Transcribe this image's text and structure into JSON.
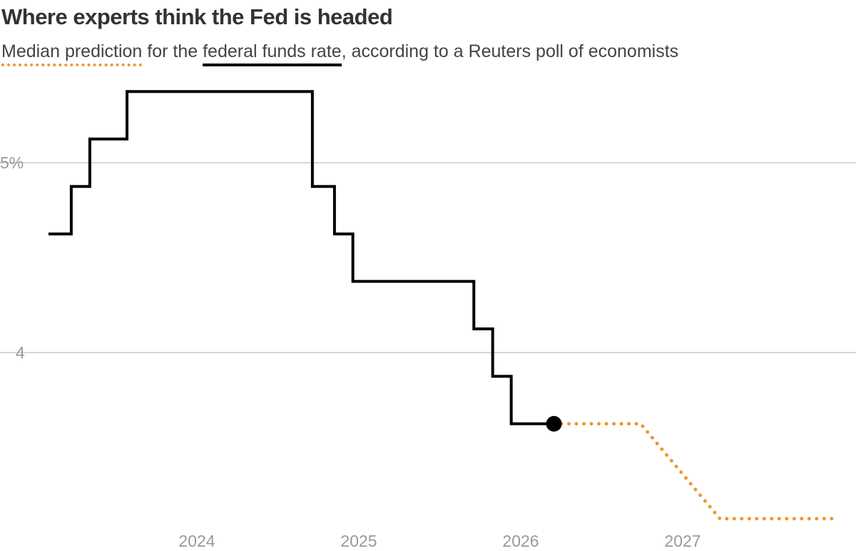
{
  "chart_data": {
    "type": "line",
    "title": "Where experts think the Fed is headed",
    "subtitle": {
      "prefix": "",
      "forecast_label": "Median prediction",
      "middle": " for the ",
      "actual_label": "federal funds rate",
      "suffix": ", according to a Reuters poll of economists"
    },
    "x_ticks": [
      "2024",
      "2025",
      "2026",
      "2027"
    ],
    "y_ticks": [
      {
        "value": 5,
        "label": "5%"
      },
      {
        "value": 4,
        "label": "4"
      }
    ],
    "ylim": [
      3,
      5.5
    ],
    "xlim": [
      "2023-01-01",
      "2028-01-01"
    ],
    "grid": "horizontal",
    "colors": {
      "actual": "#000000",
      "forecast": "#f0952f",
      "grid": "#c8c8c8"
    },
    "series": [
      {
        "name": "federal funds rate",
        "style": "step",
        "points": [
          [
            "2023-02-01",
            4.625
          ],
          [
            "2023-03-22",
            4.875
          ],
          [
            "2023-05-03",
            5.125
          ],
          [
            "2023-07-26",
            5.375
          ],
          [
            "2024-09-18",
            4.875
          ],
          [
            "2024-11-07",
            4.625
          ],
          [
            "2024-12-18",
            4.375
          ],
          [
            "2025-09-17",
            4.125
          ],
          [
            "2025-10-29",
            3.875
          ],
          [
            "2025-12-10",
            3.625
          ],
          [
            "2026-03-15",
            3.625
          ]
        ]
      },
      {
        "name": "Median prediction",
        "style": "dotted",
        "points": [
          [
            "2026-03-15",
            3.625
          ],
          [
            "2026-09-28",
            3.625
          ],
          [
            "2027-03-24",
            3.125
          ],
          [
            "2027-12-18",
            3.125
          ]
        ]
      }
    ]
  }
}
